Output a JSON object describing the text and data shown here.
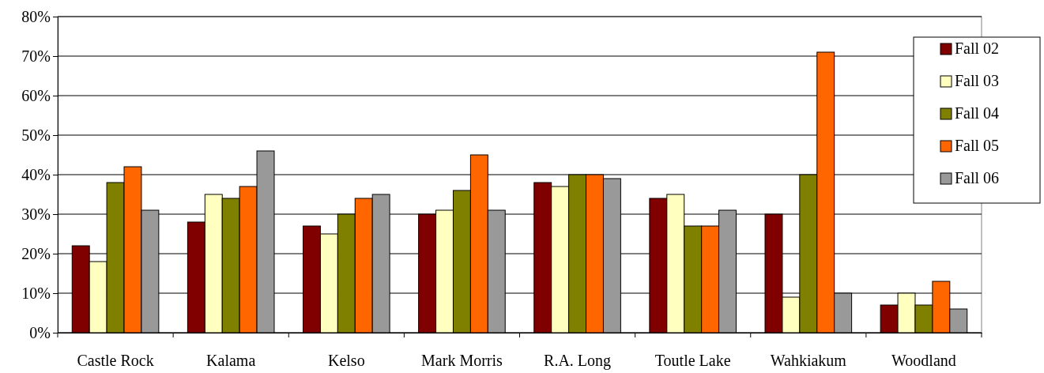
{
  "chart_data": {
    "type": "bar",
    "categories": [
      "Castle Rock",
      "Kalama",
      "Kelso",
      "Mark Morris",
      "R.A. Long",
      "Toutle Lake",
      "Wahkiakum",
      "Woodland"
    ],
    "series": [
      {
        "name": "Fall 02",
        "color": "#800000",
        "values": [
          22,
          28,
          27,
          30,
          38,
          34,
          30,
          7
        ]
      },
      {
        "name": "Fall 03",
        "color": "#ffffc0",
        "values": [
          18,
          35,
          25,
          31,
          37,
          35,
          9,
          10
        ]
      },
      {
        "name": "Fall 04",
        "color": "#808000",
        "values": [
          38,
          34,
          30,
          36,
          40,
          27,
          40,
          7
        ]
      },
      {
        "name": "Fall 05",
        "color": "#ff6600",
        "values": [
          42,
          37,
          34,
          45,
          40,
          27,
          71,
          13
        ]
      },
      {
        "name": "Fall 06",
        "color": "#999999",
        "values": [
          31,
          46,
          35,
          31,
          39,
          31,
          10,
          6
        ]
      }
    ],
    "ylim": [
      0,
      80
    ],
    "yticks": [
      {
        "value": 0,
        "label": "0%"
      },
      {
        "value": 10,
        "label": "10%"
      },
      {
        "value": 20,
        "label": "20%"
      },
      {
        "value": 30,
        "label": "30%"
      },
      {
        "value": 40,
        "label": "40%"
      },
      {
        "value": 50,
        "label": "50%"
      },
      {
        "value": 60,
        "label": "60%"
      },
      {
        "value": 70,
        "label": "70%"
      },
      {
        "value": 80,
        "label": "80%"
      }
    ],
    "grid": "y",
    "legend": "top right"
  }
}
